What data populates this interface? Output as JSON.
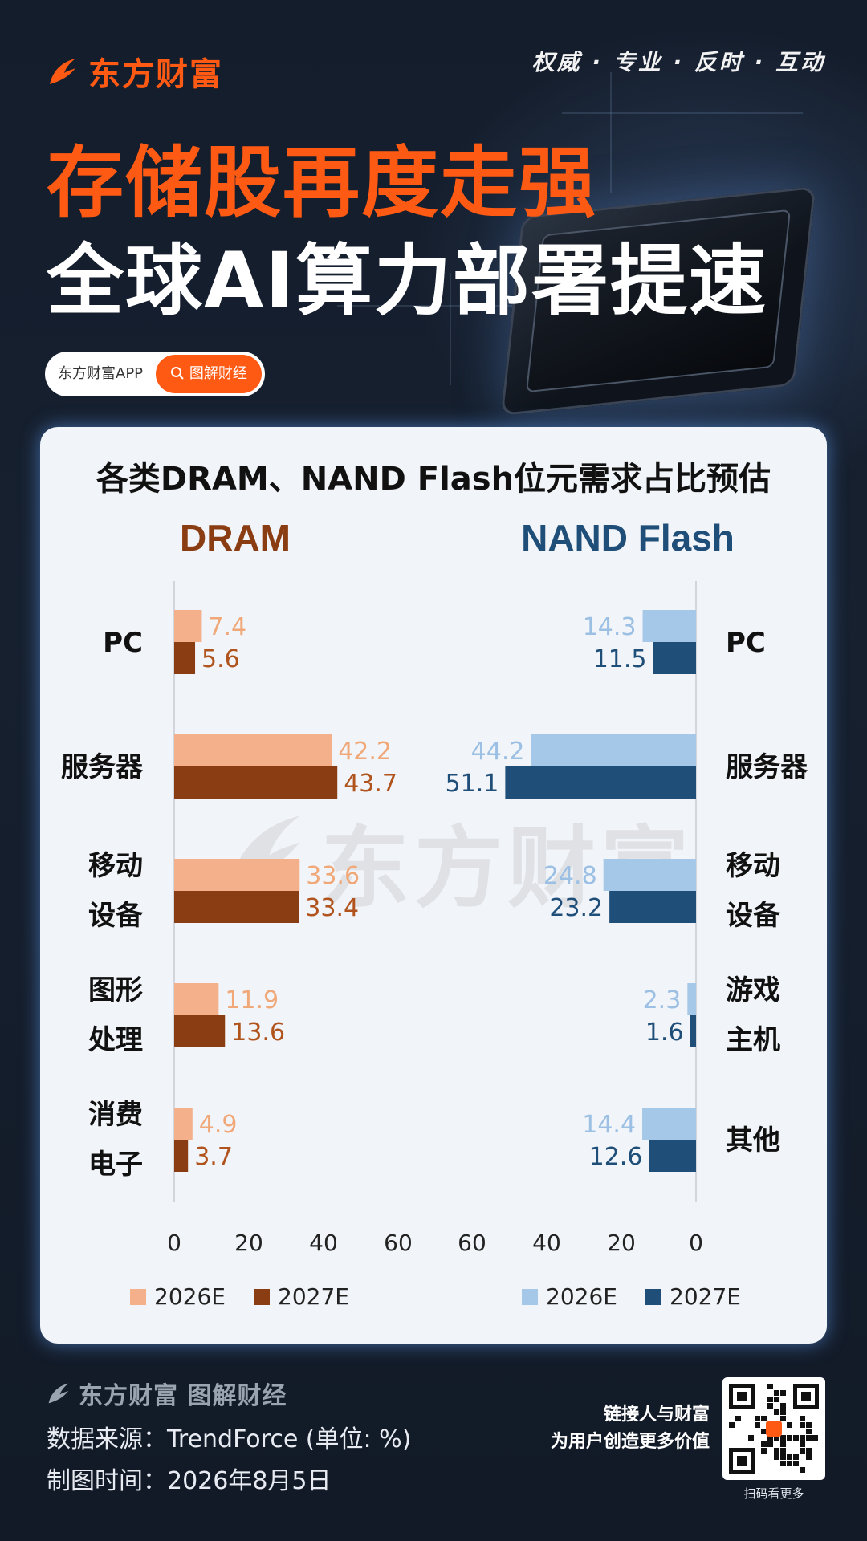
{
  "brand": {
    "name": "东方财富",
    "slogan": "权威 · 专业 · 反时 · 互动"
  },
  "headline": {
    "line1": "存储股再度走强",
    "line2": "全球AI算力部署提速"
  },
  "tag": {
    "app": "东方财富APP",
    "button": "图解财经"
  },
  "colors": {
    "orange": "#ff5a14",
    "dram2026": "#f4b08a",
    "dram2027": "#8a3d12",
    "nand2026": "#a6c8e8",
    "nand2027": "#1f4e79"
  },
  "icons": {
    "brand": "flame-logo-icon",
    "search": "search-icon",
    "qr": "qr-code"
  },
  "chart_data": [
    {
      "type": "bar",
      "title": "DRAM",
      "categories": [
        "PC",
        "服务器",
        "移动设备",
        "图形处理",
        "消费电子"
      ],
      "series": [
        {
          "name": "2026E",
          "values": [
            7.4,
            42.2,
            33.6,
            11.9,
            4.9
          ]
        },
        {
          "name": "2027E",
          "values": [
            5.6,
            43.7,
            33.4,
            13.6,
            3.7
          ]
        }
      ],
      "xlim": [
        0,
        60
      ],
      "ticks": [
        "0",
        "20",
        "40",
        "60"
      ],
      "category_lines": [
        [
          "PC"
        ],
        [
          "服务器"
        ],
        [
          "移动",
          "设备"
        ],
        [
          "图形",
          "处理"
        ],
        [
          "消费",
          "电子"
        ]
      ],
      "value_labels": [
        [
          "7.4",
          "42.2",
          "33.6",
          "11.9",
          "4.9"
        ],
        [
          "5.6",
          "43.7",
          "33.4",
          "13.6",
          "3.7"
        ]
      ],
      "legend": [
        "2026E",
        "2027E"
      ]
    },
    {
      "type": "bar",
      "title": "NAND Flash",
      "categories": [
        "PC",
        "服务器",
        "移动设备",
        "游戏主机",
        "其他"
      ],
      "series": [
        {
          "name": "2026E",
          "values": [
            14.3,
            44.2,
            24.8,
            2.3,
            14.4
          ]
        },
        {
          "name": "2027E",
          "values": [
            11.5,
            51.1,
            23.2,
            1.6,
            12.6
          ]
        }
      ],
      "xlim": [
        0,
        60
      ],
      "ticks": [
        "60",
        "40",
        "20",
        "0"
      ],
      "category_lines": [
        [
          "PC"
        ],
        [
          "服务器"
        ],
        [
          "移动",
          "设备"
        ],
        [
          "游戏",
          "主机"
        ],
        [
          "其他"
        ]
      ],
      "value_labels": [
        [
          "14.3",
          "44.2",
          "24.8",
          "2.3",
          "14.4"
        ],
        [
          "11.5",
          "51.1",
          "23.2",
          "1.6",
          "12.6"
        ]
      ],
      "legend": [
        "2026E",
        "2027E"
      ]
    }
  ],
  "chart_title": "各类DRAM、NAND Flash位元需求占比预估",
  "watermark": "东方财富",
  "footer": {
    "brand": "东方财富 图解财经",
    "source": "数据来源：TrendForce (单位: %)",
    "date": "制图时间：2026年8月5日",
    "tagline1": "链接人与财富",
    "tagline2": "为用户创造更多价值",
    "qr_caption": "扫码看更多"
  }
}
